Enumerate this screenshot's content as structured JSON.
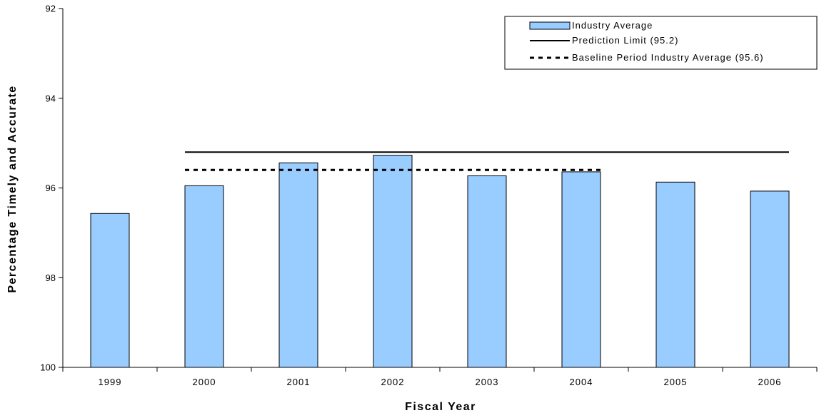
{
  "chart_data": {
    "type": "bar",
    "xlabel": "Fiscal Year",
    "ylabel": "Percentage Timely and Accurate",
    "ylim": [
      92,
      100
    ],
    "y_axis_inverted": true,
    "yticks": [
      "92",
      "94",
      "96",
      "98",
      "100"
    ],
    "categories": [
      "1999",
      "2000",
      "2001",
      "2002",
      "2003",
      "2004",
      "2005",
      "2006"
    ],
    "series": [
      {
        "name": "Industry Average",
        "type": "bar",
        "color": "#99ccff",
        "values": [
          96.57,
          95.95,
          95.44,
          95.27,
          95.73,
          95.64,
          95.87,
          96.07
        ]
      },
      {
        "name": "Prediction Limit (95.2)",
        "type": "line",
        "style": "solid",
        "color": "#000000",
        "value": 95.2,
        "x_range": [
          "2000",
          "2006"
        ]
      },
      {
        "name": "Baseline Period Industry Average (95.6)",
        "type": "line",
        "style": "dashed",
        "color": "#000000",
        "value": 95.6,
        "x_range": [
          "2000",
          "2004"
        ]
      }
    ],
    "legend_position": "top-right",
    "grid": false
  }
}
